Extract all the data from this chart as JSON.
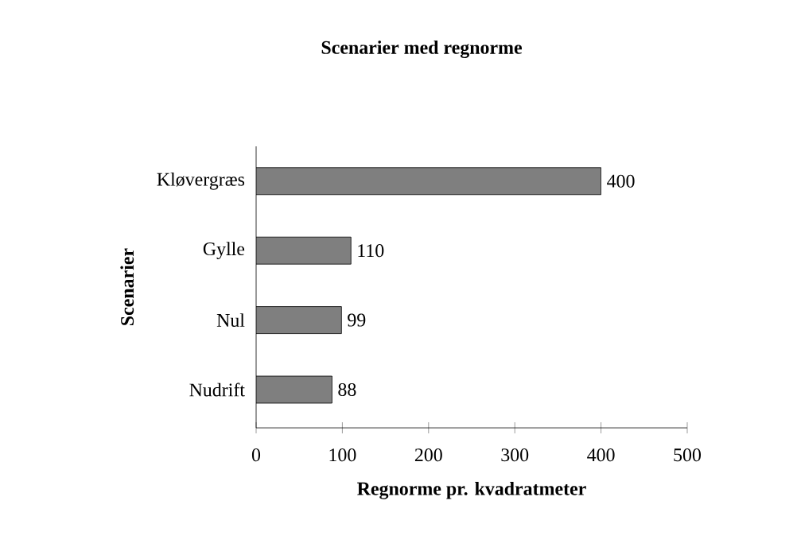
{
  "chart_data": {
    "type": "bar",
    "orientation": "horizontal",
    "title": "Scenarier med regnorme",
    "xlabel": "Regnorme pr. kvadratmeter",
    "ylabel": "Scenarier",
    "categories": [
      "Kløvergræs",
      "Gylle",
      "Nul",
      "Nudrift"
    ],
    "values": [
      400,
      110,
      99,
      88
    ],
    "color": "#7f7f7f",
    "xlim": [
      0,
      500
    ],
    "xticks": [
      0,
      100,
      200,
      300,
      400,
      500
    ],
    "data_labels": true,
    "grid": false
  }
}
